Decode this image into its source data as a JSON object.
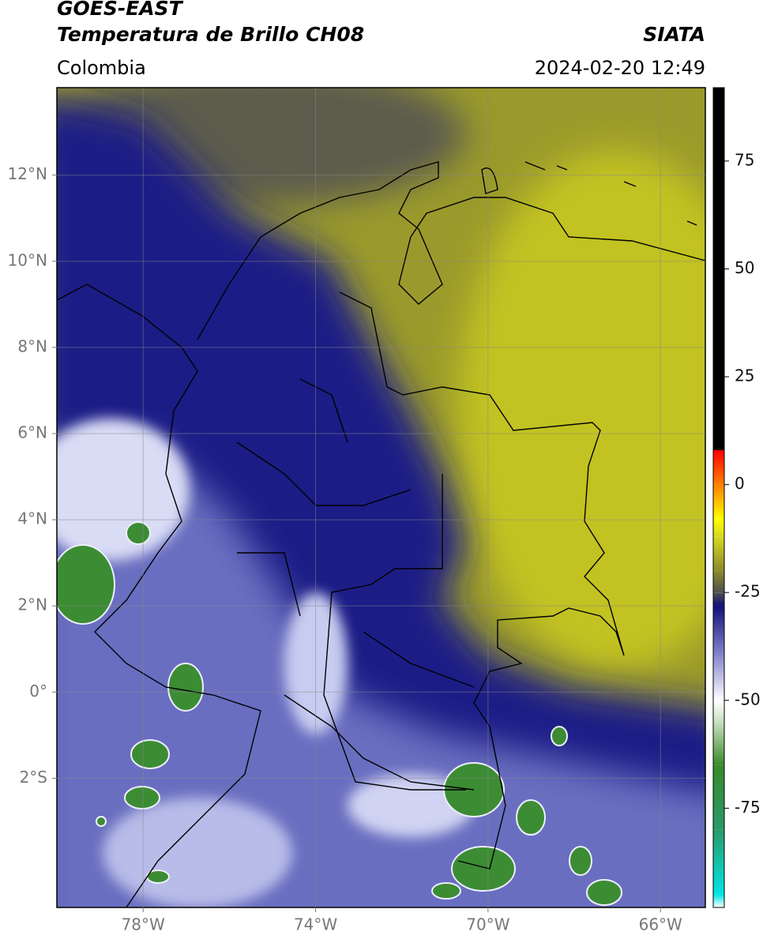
{
  "header": {
    "title": "GOES-EAST",
    "subtitle": "Temperatura de Brillo CH08",
    "region": "Colombia",
    "source": "SIATA",
    "datetime": "2024-02-20 12:49"
  },
  "map": {
    "xlim": [
      -80,
      -64.96
    ],
    "ylim": [
      -5,
      14.03
    ],
    "grid": true,
    "xticks": [
      {
        "value": -78,
        "label": "78°W"
      },
      {
        "value": -74,
        "label": "74°W"
      },
      {
        "value": -70,
        "label": "70°W"
      },
      {
        "value": -66,
        "label": "66°W"
      }
    ],
    "yticks": [
      {
        "value": 12,
        "label": "12°N"
      },
      {
        "value": 10,
        "label": "10°N"
      },
      {
        "value": 8,
        "label": "8°N"
      },
      {
        "value": 6,
        "label": "6°N"
      },
      {
        "value": 4,
        "label": "4°N"
      },
      {
        "value": 2,
        "label": "2°N"
      },
      {
        "value": 0,
        "label": "0°"
      },
      {
        "value": -2,
        "label": "2°S"
      }
    ]
  },
  "colorbar": {
    "lim": [
      -98,
      92
    ],
    "ticks": [
      75,
      50,
      25,
      0,
      -25,
      -50,
      -75
    ],
    "stops": [
      {
        "value": -98,
        "color": "#ffffff"
      },
      {
        "value": -95,
        "color": "#00e5e5"
      },
      {
        "value": -80,
        "color": "#2a9a6a"
      },
      {
        "value": -65,
        "color": "#3a8a2a"
      },
      {
        "value": -55,
        "color": "#c8e0c0"
      },
      {
        "value": -50,
        "color": "#ffffff"
      },
      {
        "value": -40,
        "color": "#8a8ad0"
      },
      {
        "value": -28,
        "color": "#10107a"
      },
      {
        "value": -25,
        "color": "#505050"
      },
      {
        "value": -20,
        "color": "#8a8a2a"
      },
      {
        "value": -12,
        "color": "#d8d820"
      },
      {
        "value": -8,
        "color": "#ffff00"
      },
      {
        "value": 0,
        "color": "#ff8000"
      },
      {
        "value": 8,
        "color": "#ff0000"
      },
      {
        "value": 8.01,
        "color": "#000000"
      },
      {
        "value": 92,
        "color": "#000000"
      }
    ]
  }
}
